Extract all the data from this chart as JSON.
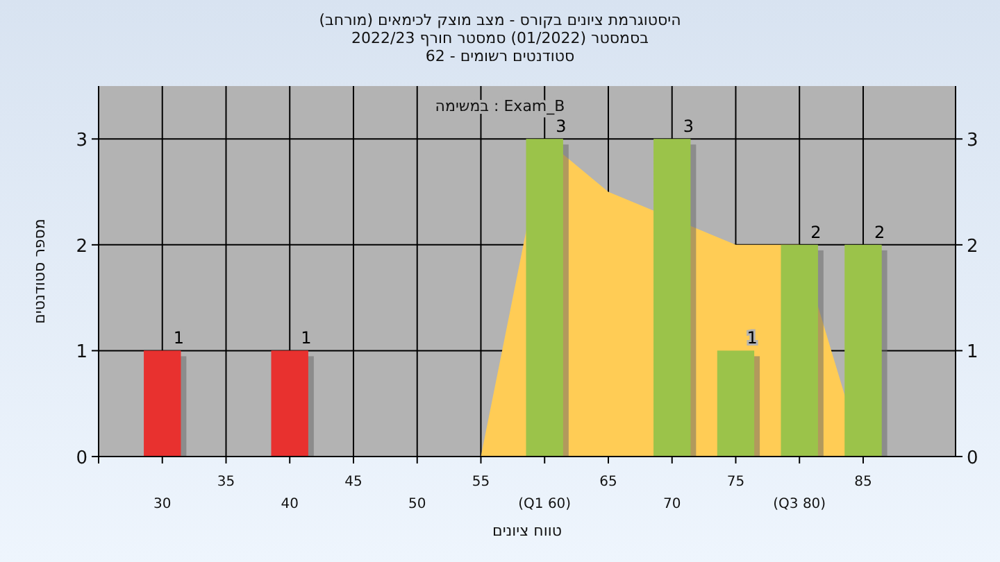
{
  "chart_data": {
    "type": "bar",
    "title": "היסטוגרמת ציונים בקורס - מצב מוצק לכימאים (מורחב)",
    "subtitle": "בסמסטר (01/2022) סמסטר חורף 2022/23\nסטודנטים רשומים - 62",
    "xlabel": "טווח ציונים",
    "ylabel": "מספר סטודנטים",
    "annotations": [
      "במשימה : Exam_B"
    ],
    "categories": [
      "30",
      "35",
      "40",
      "45",
      "50",
      "55",
      "(Q1 60)",
      "65",
      "70",
      "75",
      "(Q3 80)",
      "85"
    ],
    "series": [
      {
        "type": "area",
        "color": "#ffcc55",
        "values": [
          null,
          null,
          null,
          null,
          null,
          0,
          3,
          2.5,
          null,
          2,
          2,
          0
        ]
      },
      {
        "type": "bar",
        "values": [
          1,
          0,
          1,
          0,
          0,
          0,
          3,
          0,
          3,
          1,
          2,
          2
        ],
        "colors": [
          "#e8312f",
          "#e8312f",
          "#e8312f",
          "#e8312f",
          "#e8312f",
          "#9bc34a",
          "#9bc34a",
          "#9bc34a",
          "#9bc34a",
          "#9bc34a",
          "#9bc34a",
          "#9bc34a"
        ],
        "value_labels": [
          "1",
          null,
          "1",
          null,
          null,
          null,
          "3",
          null,
          "3",
          "1",
          "2",
          "2"
        ]
      }
    ],
    "ylim": [
      0,
      3.5
    ],
    "yticks": [
      0,
      1,
      2,
      3
    ],
    "y2lim": [
      0,
      3.5
    ],
    "y2ticks": [
      0,
      1,
      2,
      3
    ],
    "grid": true
  }
}
